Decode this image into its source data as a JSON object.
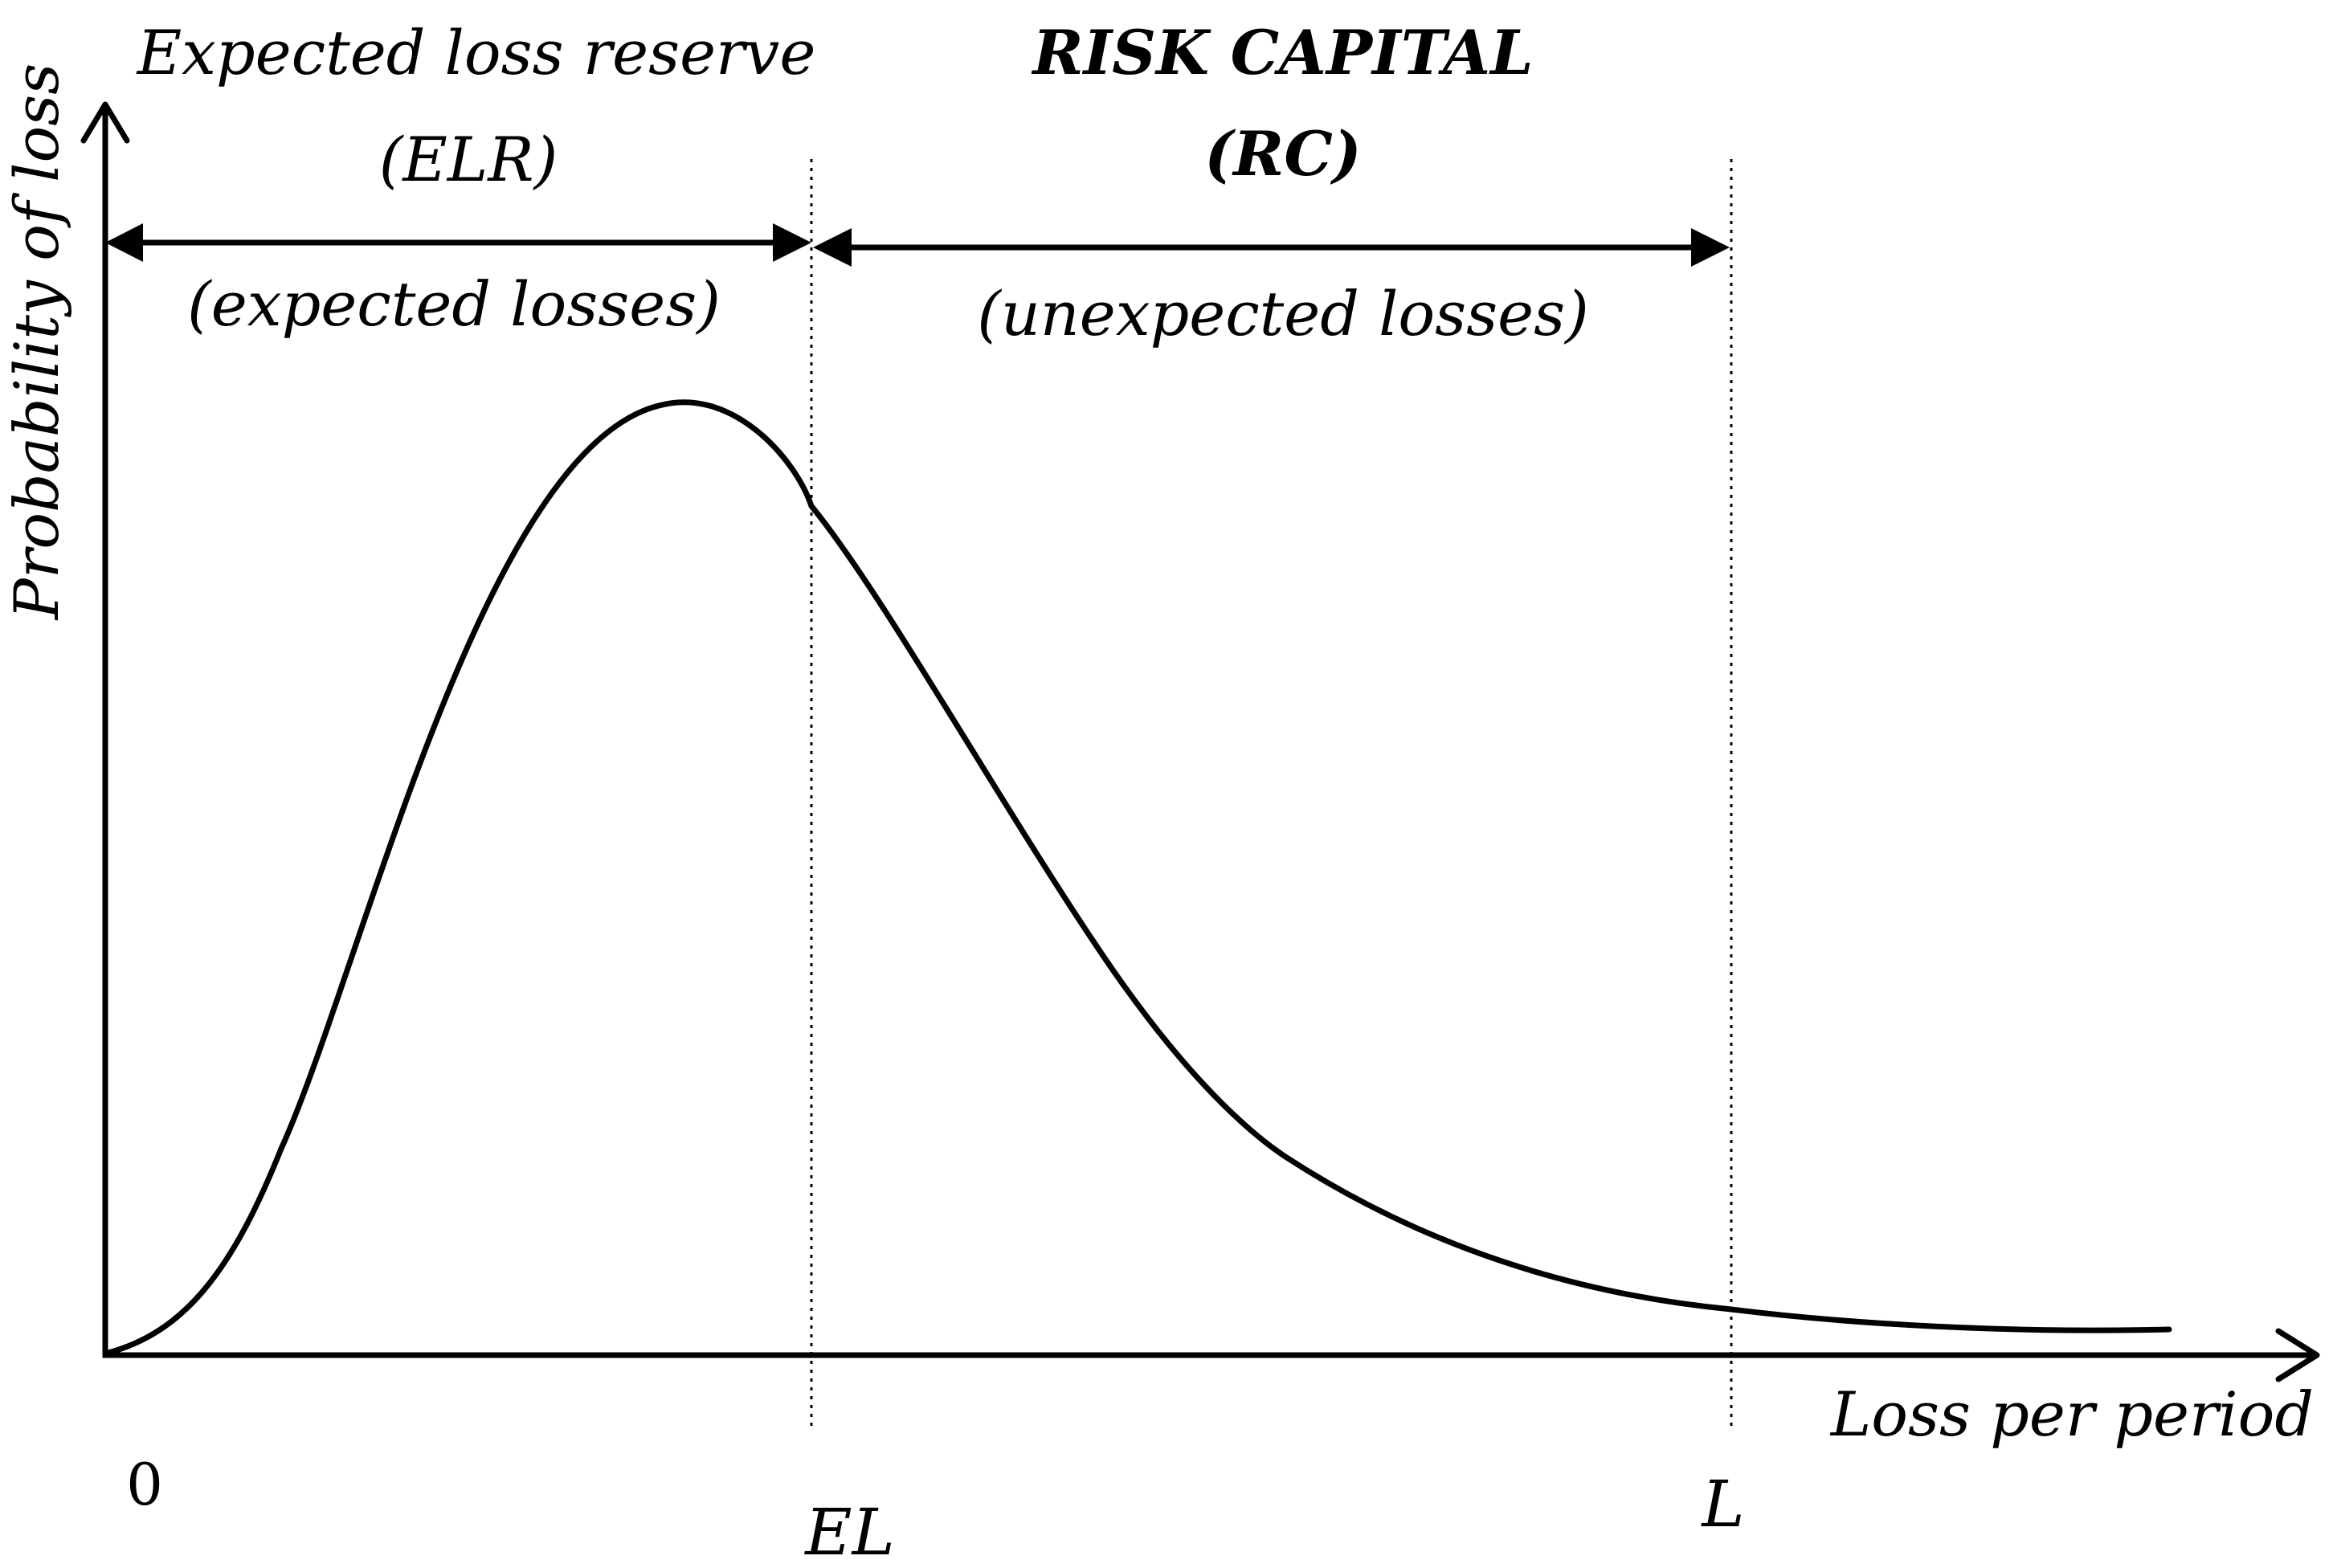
{
  "labels": {
    "elr_title": "Expected loss reserve",
    "elr_abbrev": "(ELR)",
    "elr_sub": "(expected losses)",
    "rc_title": "RISK CAPITAL",
    "rc_abbrev": "(RC)",
    "rc_sub": "(unexpected losses)",
    "y_axis": "Probability of loss",
    "x_axis": "Loss per period",
    "origin": "0",
    "el_marker": "EL",
    "l_marker": "L"
  },
  "colors": {
    "ink": "#000000",
    "background": "#ffffff"
  }
}
